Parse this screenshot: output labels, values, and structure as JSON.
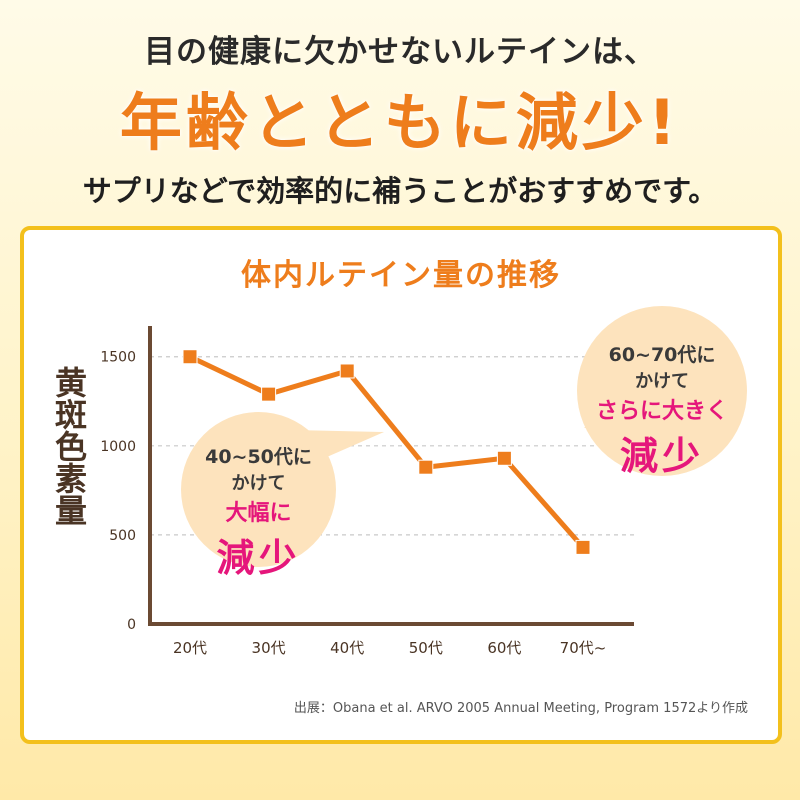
{
  "header": {
    "line1": "目の健康に欠かせないルテインは、",
    "line2": "年齢とともに減少!",
    "line3": "サプリなどで効率的に補うことがおすすめです。"
  },
  "chart_data": {
    "type": "line",
    "title": "体内ルテイン量の推移",
    "ylabel": "黄斑色素量",
    "xlabel": "",
    "categories": [
      "20代",
      "30代",
      "40代",
      "50代",
      "60代",
      "70代~"
    ],
    "values": [
      1500,
      1290,
      1420,
      880,
      930,
      430
    ],
    "ylim": [
      0,
      1650
    ],
    "yticks": [
      0,
      500,
      1000,
      1500
    ],
    "grid": true,
    "line_color": "#ee7d1c",
    "axis_color": "#6b4a33",
    "annotations": [
      {
        "line1": "40~50代に",
        "line2": "かけて",
        "line3": "大幅に",
        "line4": "減少"
      },
      {
        "line1": "60~70代に",
        "line2": "かけて",
        "line3": "さらに大きく",
        "line4": "減少"
      }
    ],
    "source": "出展：Obana et al. ARVO 2005 Annual Meeting, Program 1572より作成"
  },
  "colors": {
    "accent": "#ee7d1c",
    "border": "#f3c01c",
    "highlight": "#e5167b",
    "bubble": "#fde3bd"
  }
}
